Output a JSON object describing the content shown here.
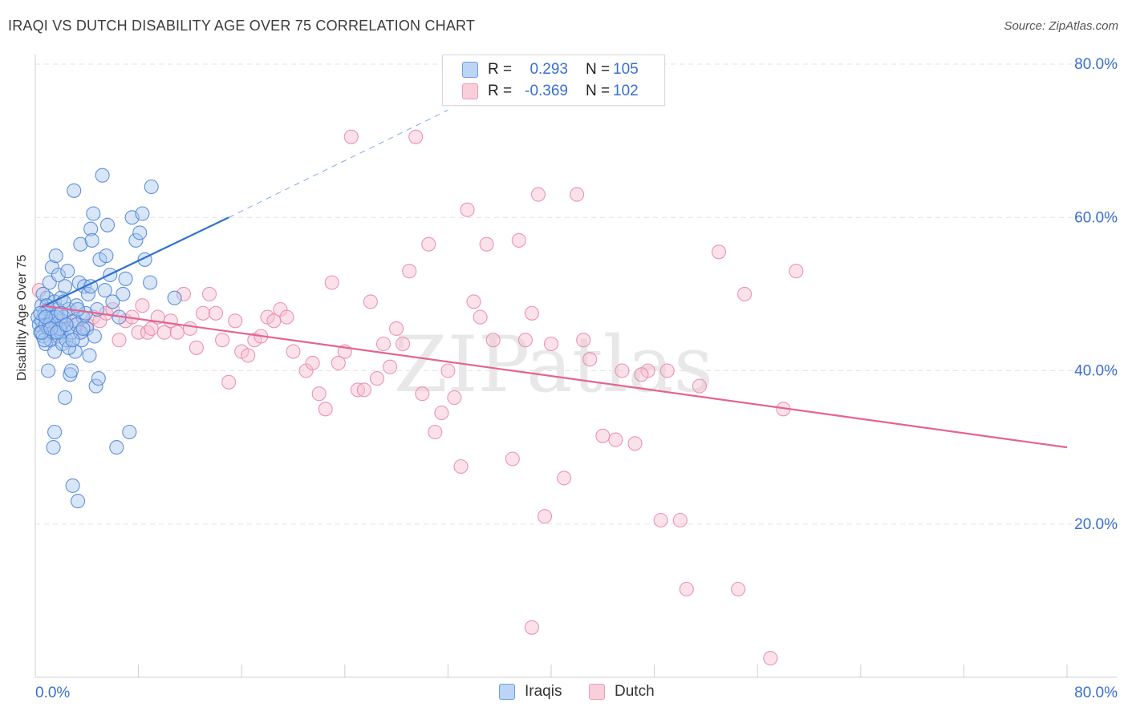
{
  "title": "IRAQI VS DUTCH DISABILITY AGE OVER 75 CORRELATION CHART",
  "source": "Source: ZipAtlas.com",
  "watermark": "ZIPatlas",
  "colors": {
    "iraqis_fill": "#a9c8f0",
    "iraqis_stroke": "#4f86d6",
    "iraqis_line": "#2f6fd0",
    "dutch_fill": "#f7bfd0",
    "dutch_stroke": "#e98aa8",
    "dutch_line": "#e5638f",
    "tick_label": "#3a6fd0",
    "grid": "#e3e3e3"
  },
  "legend": {
    "rows": [
      {
        "r_label": "R =",
        "r_value": "0.293",
        "n_label": "N =",
        "n_value": "105"
      },
      {
        "r_label": "R =",
        "r_value": "-0.369",
        "n_label": "N =",
        "n_value": "102"
      }
    ]
  },
  "bottom_legend": [
    "Iraqis",
    "Dutch"
  ],
  "chart_data": {
    "type": "scatter",
    "title": "IRAQI VS DUTCH DISABILITY AGE OVER 75 CORRELATION CHART",
    "xlabel": "",
    "ylabel": "Disability Age Over 75",
    "xlim": [
      0,
      80
    ],
    "ylim": [
      0,
      80
    ],
    "x_tick_labels": [
      "0.0%",
      "80.0%"
    ],
    "y_tick_labels": [
      "20.0%",
      "40.0%",
      "60.0%",
      "80.0%"
    ],
    "y_ticks": [
      20,
      40,
      60,
      80
    ],
    "grid": true,
    "legend_position": "top-center",
    "series": [
      {
        "name": "Iraqis",
        "r": 0.293,
        "n": 105,
        "trendline": {
          "x": [
            0.5,
            15.0
          ],
          "y": [
            48.3,
            60.0
          ],
          "dashed_to": [
            32.0,
            74.0
          ]
        },
        "points": [
          [
            0.2,
            47.0
          ],
          [
            0.3,
            46.0
          ],
          [
            0.4,
            45.0
          ],
          [
            0.5,
            48.5
          ],
          [
            0.5,
            46.5
          ],
          [
            0.6,
            44.5
          ],
          [
            0.7,
            47.5
          ],
          [
            0.8,
            46.0
          ],
          [
            0.8,
            43.5
          ],
          [
            0.9,
            49.5
          ],
          [
            1.0,
            45.5
          ],
          [
            1.0,
            48.0
          ],
          [
            1.1,
            51.5
          ],
          [
            1.2,
            44.0
          ],
          [
            1.2,
            46.5
          ],
          [
            1.3,
            47.0
          ],
          [
            1.3,
            53.5
          ],
          [
            1.4,
            45.0
          ],
          [
            1.5,
            49.0
          ],
          [
            1.5,
            42.5
          ],
          [
            1.6,
            55.0
          ],
          [
            1.6,
            46.0
          ],
          [
            1.7,
            48.0
          ],
          [
            1.8,
            44.5
          ],
          [
            1.8,
            52.5
          ],
          [
            1.9,
            46.5
          ],
          [
            2.0,
            45.0
          ],
          [
            2.0,
            49.5
          ],
          [
            2.1,
            43.5
          ],
          [
            2.2,
            47.0
          ],
          [
            2.3,
            36.5
          ],
          [
            2.3,
            51.0
          ],
          [
            2.4,
            44.0
          ],
          [
            2.5,
            45.5
          ],
          [
            2.5,
            53.0
          ],
          [
            2.6,
            48.0
          ],
          [
            2.7,
            39.5
          ],
          [
            2.8,
            45.0
          ],
          [
            2.9,
            25.0
          ],
          [
            3.0,
            63.5
          ],
          [
            3.0,
            46.5
          ],
          [
            3.1,
            42.5
          ],
          [
            3.2,
            48.5
          ],
          [
            3.3,
            23.0
          ],
          [
            3.4,
            51.5
          ],
          [
            3.5,
            56.5
          ],
          [
            3.6,
            44.0
          ],
          [
            3.7,
            47.0
          ],
          [
            3.8,
            51.0
          ],
          [
            4.0,
            45.5
          ],
          [
            4.1,
            50.0
          ],
          [
            4.2,
            42.0
          ],
          [
            4.3,
            58.5
          ],
          [
            4.4,
            57.0
          ],
          [
            4.5,
            60.5
          ],
          [
            4.6,
            44.5
          ],
          [
            4.7,
            38.0
          ],
          [
            4.8,
            48.0
          ],
          [
            4.9,
            39.0
          ],
          [
            5.0,
            54.5
          ],
          [
            5.2,
            65.5
          ],
          [
            5.4,
            50.5
          ],
          [
            5.5,
            55.0
          ],
          [
            5.6,
            59.0
          ],
          [
            5.8,
            52.5
          ],
          [
            6.0,
            49.0
          ],
          [
            6.3,
            30.0
          ],
          [
            6.5,
            47.0
          ],
          [
            6.8,
            50.0
          ],
          [
            7.0,
            52.0
          ],
          [
            7.3,
            32.0
          ],
          [
            7.5,
            60.0
          ],
          [
            7.8,
            57.0
          ],
          [
            8.1,
            58.0
          ],
          [
            8.3,
            60.5
          ],
          [
            8.5,
            54.5
          ],
          [
            8.9,
            51.5
          ],
          [
            9.0,
            64.0
          ],
          [
            10.8,
            49.5
          ],
          [
            1.0,
            40.0
          ],
          [
            1.4,
            30.0
          ],
          [
            1.5,
            32.0
          ],
          [
            0.6,
            50.0
          ],
          [
            0.7,
            44.0
          ],
          [
            0.9,
            48.5
          ],
          [
            1.1,
            46.0
          ],
          [
            1.6,
            47.0
          ],
          [
            1.9,
            45.5
          ],
          [
            2.2,
            49.0
          ],
          [
            2.6,
            43.0
          ],
          [
            2.8,
            40.0
          ],
          [
            3.2,
            46.0
          ],
          [
            3.5,
            45.0
          ],
          [
            3.9,
            47.5
          ],
          [
            4.3,
            51.0
          ],
          [
            0.4,
            47.5
          ],
          [
            0.5,
            45.0
          ],
          [
            0.8,
            47.0
          ],
          [
            1.2,
            45.5
          ],
          [
            1.7,
            45.0
          ],
          [
            2.0,
            47.5
          ],
          [
            2.4,
            46.0
          ],
          [
            2.9,
            44.0
          ],
          [
            3.3,
            48.0
          ],
          [
            3.7,
            45.5
          ]
        ]
      },
      {
        "name": "Dutch",
        "r": -0.369,
        "n": 102,
        "trendline": {
          "x": [
            0.5,
            80.0
          ],
          "y": [
            48.5,
            30.0
          ]
        },
        "points": [
          [
            0.3,
            50.5
          ],
          [
            0.8,
            45.0
          ],
          [
            1.0,
            47.5
          ],
          [
            1.2,
            46.0
          ],
          [
            1.5,
            44.5
          ],
          [
            2.0,
            45.5
          ],
          [
            2.5,
            47.0
          ],
          [
            3.0,
            46.5
          ],
          [
            3.5,
            45.0
          ],
          [
            4.0,
            46.0
          ],
          [
            4.5,
            47.0
          ],
          [
            5.0,
            46.5
          ],
          [
            5.5,
            47.5
          ],
          [
            6.0,
            48.0
          ],
          [
            6.5,
            44.0
          ],
          [
            7.0,
            46.5
          ],
          [
            7.5,
            47.0
          ],
          [
            8.0,
            45.0
          ],
          [
            8.3,
            48.5
          ],
          [
            8.7,
            45.0
          ],
          [
            9.0,
            45.5
          ],
          [
            9.5,
            47.0
          ],
          [
            10.0,
            45.0
          ],
          [
            10.5,
            46.5
          ],
          [
            11.0,
            45.0
          ],
          [
            11.5,
            50.0
          ],
          [
            12.0,
            45.5
          ],
          [
            12.5,
            43.0
          ],
          [
            13.0,
            47.5
          ],
          [
            13.5,
            50.0
          ],
          [
            14.0,
            47.5
          ],
          [
            14.5,
            44.0
          ],
          [
            15.0,
            38.5
          ],
          [
            15.5,
            46.5
          ],
          [
            16.0,
            42.5
          ],
          [
            16.5,
            42.0
          ],
          [
            17.0,
            44.0
          ],
          [
            17.5,
            44.5
          ],
          [
            18.0,
            47.0
          ],
          [
            18.5,
            46.5
          ],
          [
            19.0,
            48.0
          ],
          [
            19.5,
            47.0
          ],
          [
            20.0,
            42.5
          ],
          [
            21.0,
            40.0
          ],
          [
            21.5,
            41.0
          ],
          [
            22.0,
            37.0
          ],
          [
            22.5,
            35.0
          ],
          [
            23.0,
            51.5
          ],
          [
            23.5,
            41.0
          ],
          [
            24.0,
            42.5
          ],
          [
            24.5,
            70.5
          ],
          [
            25.0,
            37.5
          ],
          [
            25.5,
            37.5
          ],
          [
            26.0,
            49.0
          ],
          [
            26.5,
            39.0
          ],
          [
            27.0,
            43.5
          ],
          [
            27.5,
            40.5
          ],
          [
            28.0,
            45.5
          ],
          [
            28.5,
            43.5
          ],
          [
            29.0,
            53.0
          ],
          [
            29.5,
            70.5
          ],
          [
            30.0,
            37.0
          ],
          [
            30.5,
            56.5
          ],
          [
            31.0,
            32.0
          ],
          [
            31.5,
            34.5
          ],
          [
            32.0,
            40.0
          ],
          [
            32.5,
            36.5
          ],
          [
            33.0,
            27.5
          ],
          [
            33.5,
            61.0
          ],
          [
            34.0,
            49.0
          ],
          [
            34.5,
            47.0
          ],
          [
            35.0,
            56.5
          ],
          [
            35.5,
            44.0
          ],
          [
            37.0,
            28.5
          ],
          [
            37.5,
            57.0
          ],
          [
            38.0,
            44.0
          ],
          [
            38.5,
            47.5
          ],
          [
            39.0,
            63.0
          ],
          [
            39.5,
            21.0
          ],
          [
            40.0,
            43.5
          ],
          [
            41.0,
            26.0
          ],
          [
            42.0,
            63.0
          ],
          [
            42.5,
            44.0
          ],
          [
            43.0,
            41.5
          ],
          [
            44.0,
            31.5
          ],
          [
            45.0,
            31.0
          ],
          [
            45.5,
            40.0
          ],
          [
            46.5,
            30.5
          ],
          [
            47.5,
            40.0
          ],
          [
            48.5,
            20.5
          ],
          [
            49.0,
            40.0
          ],
          [
            50.0,
            20.5
          ],
          [
            50.5,
            11.5
          ],
          [
            51.5,
            38.0
          ],
          [
            53.0,
            55.5
          ],
          [
            54.5,
            11.5
          ],
          [
            55.0,
            50.0
          ],
          [
            57.0,
            2.5
          ],
          [
            58.0,
            35.0
          ],
          [
            59.0,
            53.0
          ],
          [
            38.5,
            6.5
          ],
          [
            47.0,
            39.5
          ]
        ]
      }
    ]
  }
}
